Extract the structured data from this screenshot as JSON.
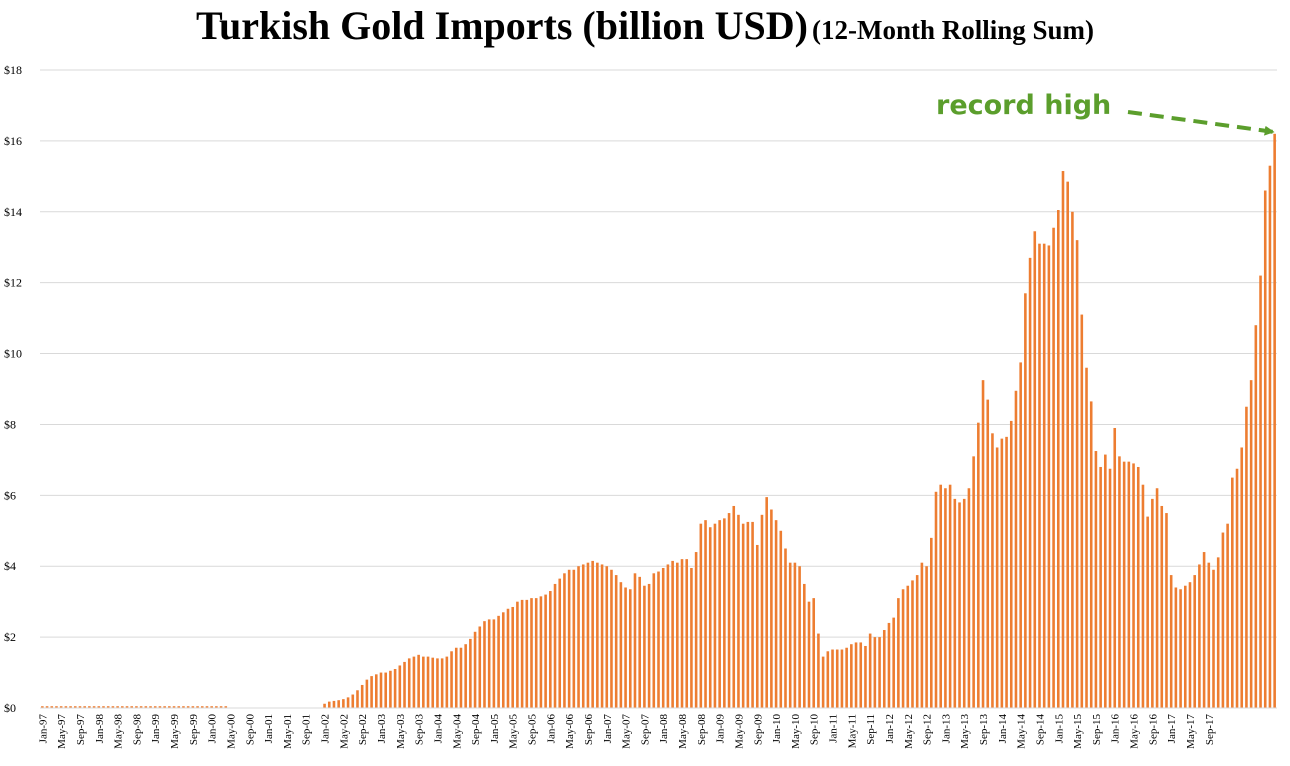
{
  "title": {
    "main": "Turkish Gold Imports (billion USD)",
    "sub": "(12-Month Rolling Sum)"
  },
  "colors": {
    "bar": "#ED7D31",
    "grid": "#D9D9D9",
    "annotation": "#5B9E2C"
  },
  "annotation": {
    "text": "record high"
  },
  "chart_data": {
    "type": "bar",
    "title": "Turkish Gold Imports (billion USD) (12-Month Rolling Sum)",
    "xlabel": "",
    "ylabel": "",
    "ylim": [
      0,
      18
    ],
    "yticks": [
      0,
      2,
      4,
      6,
      8,
      10,
      12,
      14,
      16,
      18
    ],
    "ytick_labels": [
      "$0",
      "$2",
      "$4",
      "$6",
      "$8",
      "$10",
      "$12",
      "$14",
      "$16",
      "$18"
    ],
    "grid": true,
    "start_month": "1997-01",
    "tick_labels": [
      "Jan-97",
      "May-97",
      "Sep-97",
      "Jan-98",
      "May-98",
      "Sep-98",
      "Jan-99",
      "May-99",
      "Sep-99",
      "Jan-00",
      "May-00",
      "Sep-00",
      "Jan-01",
      "May-01",
      "Sep-01",
      "Jan-02",
      "May-02",
      "Sep-02",
      "Jan-03",
      "May-03",
      "Sep-03",
      "Jan-04",
      "May-04",
      "Sep-04",
      "Jan-05",
      "May-05",
      "Sep-05",
      "Jan-06",
      "May-06",
      "Sep-06",
      "Jan-07",
      "May-07",
      "Sep-07",
      "Jan-08",
      "May-08",
      "Sep-08",
      "Jan-09",
      "May-09",
      "Sep-09",
      "Jan-10",
      "May-10",
      "Sep-10",
      "Jan-11",
      "May-11",
      "Sep-11",
      "Jan-12",
      "May-12",
      "Sep-12",
      "Jan-13",
      "May-13",
      "Sep-13",
      "Jan-14",
      "May-14",
      "Sep-14",
      "Jan-15",
      "May-15",
      "Sep-15",
      "Jan-16",
      "May-16",
      "Sep-16",
      "Jan-17",
      "May-17",
      "Sep-17"
    ],
    "tick_every": 4,
    "series": [
      {
        "name": "Turkish Gold Imports (12-Month Rolling Sum, billion USD)",
        "values": [
          0.05,
          0.05,
          0.05,
          0.05,
          0.05,
          0.05,
          0.05,
          0.05,
          0.05,
          0.05,
          0.05,
          0.05,
          0.05,
          0.05,
          0.05,
          0.05,
          0.05,
          0.05,
          0.05,
          0.05,
          0.05,
          0.05,
          0.05,
          0.05,
          0.05,
          0.05,
          0.05,
          0.05,
          0.05,
          0.05,
          0.05,
          0.05,
          0.05,
          0.05,
          0.05,
          0.05,
          0.05,
          0.05,
          0.05,
          0.05,
          0,
          0,
          0,
          0,
          0,
          0,
          0,
          0,
          0,
          0,
          0,
          0,
          0,
          0,
          0,
          0,
          0,
          0,
          0,
          0,
          0.12,
          0.18,
          0.2,
          0.22,
          0.25,
          0.3,
          0.38,
          0.5,
          0.65,
          0.8,
          0.9,
          0.95,
          1.0,
          1.0,
          1.05,
          1.1,
          1.2,
          1.3,
          1.4,
          1.45,
          1.5,
          1.45,
          1.45,
          1.42,
          1.4,
          1.4,
          1.45,
          1.6,
          1.7,
          1.7,
          1.8,
          1.95,
          2.15,
          2.3,
          2.45,
          2.5,
          2.5,
          2.6,
          2.7,
          2.8,
          2.85,
          3.0,
          3.05,
          3.05,
          3.1,
          3.1,
          3.15,
          3.2,
          3.3,
          3.5,
          3.65,
          3.8,
          3.9,
          3.9,
          4.0,
          4.05,
          4.1,
          4.15,
          4.1,
          4.05,
          4.0,
          3.9,
          3.75,
          3.55,
          3.4,
          3.35,
          3.8,
          3.7,
          3.45,
          3.5,
          3.8,
          3.85,
          3.95,
          4.05,
          4.15,
          4.1,
          4.2,
          4.2,
          3.95,
          4.4,
          5.2,
          5.3,
          5.1,
          5.2,
          5.3,
          5.35,
          5.5,
          5.7,
          5.45,
          5.2,
          5.25,
          5.25,
          4.6,
          5.45,
          5.95,
          5.6,
          5.3,
          5.0,
          4.5,
          4.1,
          4.1,
          4.0,
          3.5,
          3.0,
          3.1,
          2.1,
          1.45,
          1.6,
          1.65,
          1.65,
          1.65,
          1.7,
          1.8,
          1.85,
          1.85,
          1.75,
          2.1,
          2.0,
          2.0,
          2.2,
          2.4,
          2.55,
          3.1,
          3.35,
          3.45,
          3.6,
          3.75,
          4.1,
          4.0,
          4.8,
          6.1,
          6.3,
          6.2,
          6.3,
          5.9,
          5.8,
          5.9,
          6.2,
          7.1,
          8.05,
          9.25,
          8.7,
          7.75,
          7.35,
          7.6,
          7.65,
          8.1,
          8.95,
          9.75,
          11.7,
          12.7,
          13.45,
          13.1,
          13.1,
          13.05,
          13.55,
          14.05,
          15.15,
          14.85,
          14.0,
          13.2,
          11.1,
          9.6,
          8.65,
          7.25,
          6.8,
          7.15,
          6.75,
          7.9,
          7.1,
          6.95,
          6.95,
          6.9,
          6.8,
          6.3,
          5.4,
          5.9,
          6.2,
          5.7,
          5.5,
          3.75,
          3.4,
          3.35,
          3.45,
          3.55,
          3.75,
          4.05,
          4.4,
          4.1,
          3.9,
          4.25,
          4.95,
          5.2,
          6.5,
          6.75,
          7.35,
          8.5,
          9.25,
          10.8,
          12.2,
          14.6,
          15.3,
          16.2
        ]
      }
    ]
  }
}
